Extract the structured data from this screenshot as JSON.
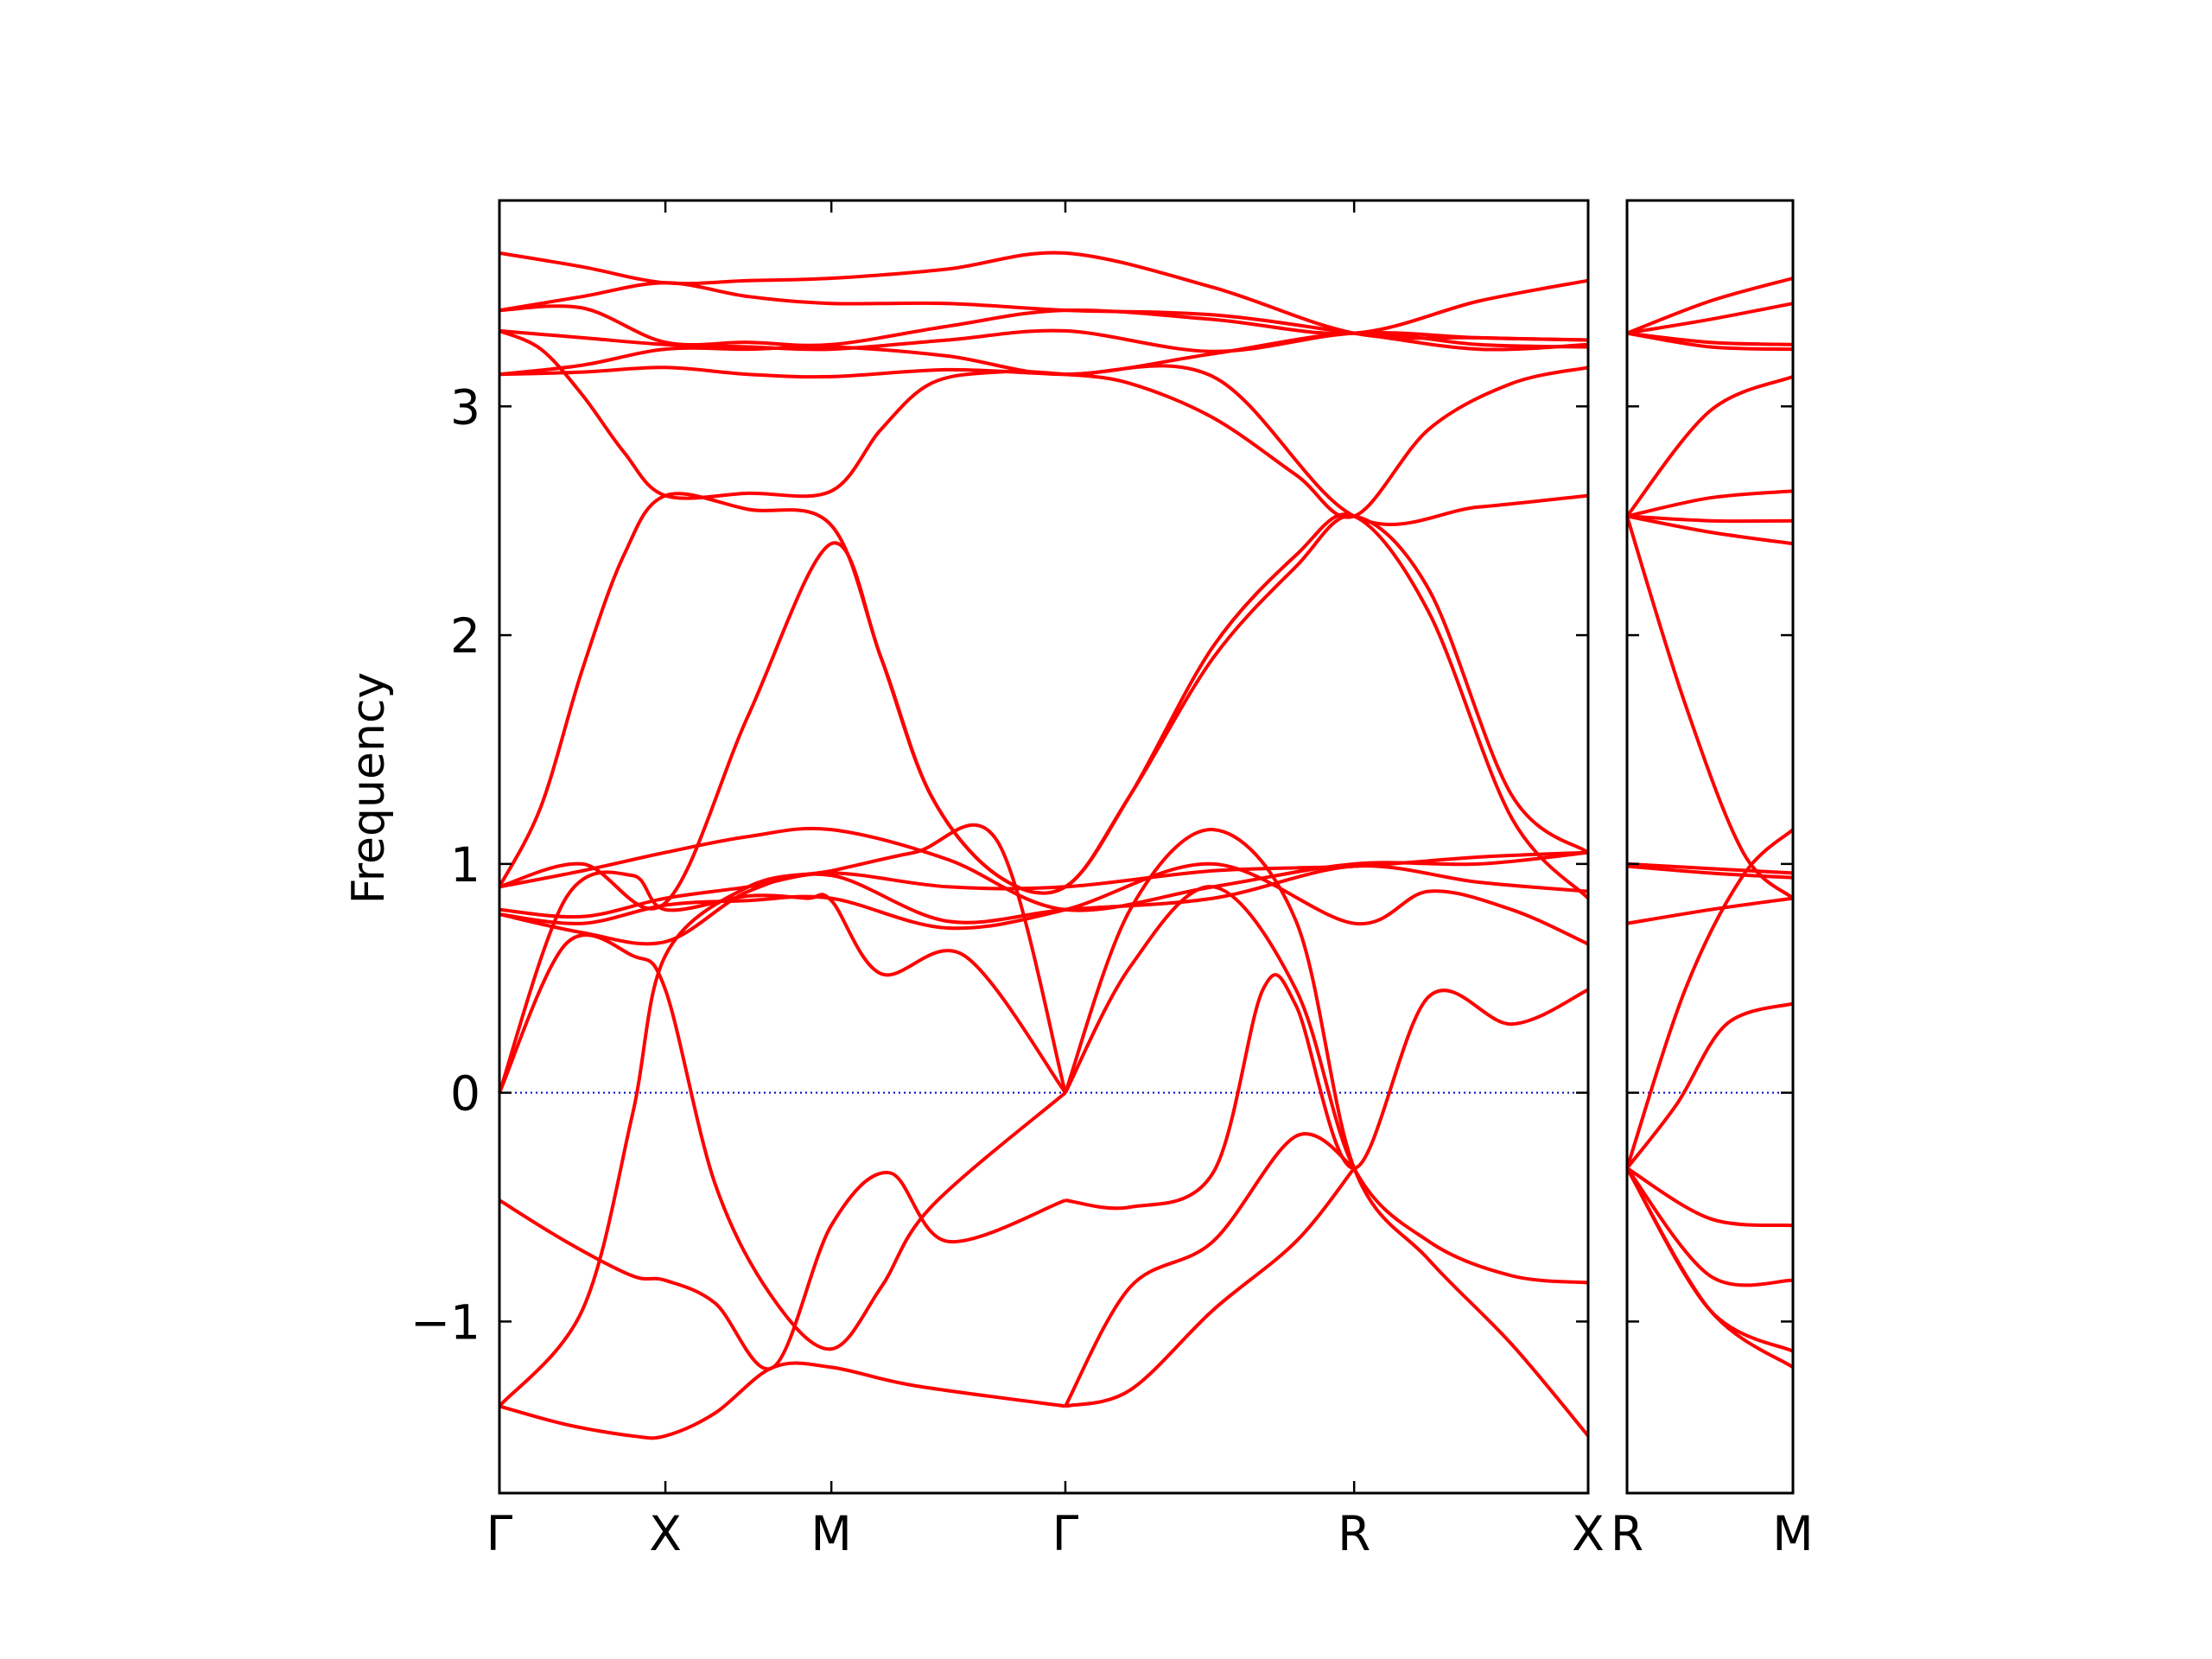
{
  "chart_data": {
    "type": "line",
    "title": "",
    "ylabel": "Frequency",
    "xlabel": "",
    "ylim": [
      -1.75,
      3.9
    ],
    "yticks": [
      -1,
      0,
      1,
      2,
      3
    ],
    "ytick_labels": [
      "−1",
      "0",
      "1",
      "2",
      "3"
    ],
    "zero_line": {
      "value": 0,
      "color": "#0000cc",
      "style": "dotted"
    },
    "band_color": "#ff0000",
    "panels": [
      {
        "name": "main",
        "xlim": [
          0,
          6.56
        ],
        "high_symmetry_points": [
          {
            "label": "Γ",
            "x": 0
          },
          {
            "label": "X",
            "x": 1
          },
          {
            "label": "M",
            "x": 2
          },
          {
            "label": "Γ",
            "x": 3.41
          },
          {
            "label": "R",
            "x": 5.15
          },
          {
            "label": "X",
            "x": 6.56
          }
        ],
        "bands": [
          {
            "x": [
              0,
              0.5,
              1,
              1.5,
              2,
              2.7,
              3.41,
              4.3,
              5.15,
              5.9,
              6.56
            ],
            "y": [
              3.67,
              3.61,
              3.54,
              3.55,
              3.56,
              3.6,
              3.67,
              3.52,
              3.32,
              3.3,
              3.29
            ]
          },
          {
            "x": [
              0,
              0.5,
              1,
              1.5,
              2,
              2.7,
              3.41,
              4.3,
              5.15,
              5.9,
              6.56
            ],
            "y": [
              3.42,
              3.48,
              3.54,
              3.48,
              3.45,
              3.45,
              3.42,
              3.4,
              3.32,
              3.25,
              3.27
            ]
          },
          {
            "x": [
              0,
              0.5,
              1,
              1.5,
              2,
              2.7,
              3.41,
              4.3,
              5.15,
              5.9,
              6.56
            ],
            "y": [
              3.42,
              3.43,
              3.28,
              3.28,
              3.27,
              3.35,
              3.42,
              3.38,
              3.32,
              3.46,
              3.55
            ]
          },
          {
            "x": [
              0,
              0.5,
              1,
              1.5,
              2,
              2.7,
              3.41,
              4.3,
              5.15,
              5.9,
              6.56
            ],
            "y": [
              3.33,
              3.3,
              3.27,
              3.26,
              3.25,
              3.29,
              3.33,
              3.24,
              3.32,
              3.3,
              3.29
            ]
          },
          {
            "x": [
              0,
              0.5,
              1,
              1.5,
              2,
              2.7,
              3.41,
              4.3,
              5.15,
              5.9,
              6.56
            ],
            "y": [
              3.14,
              3.18,
              3.25,
              3.25,
              3.26,
              3.22,
              3.14,
              3.23,
              3.32,
              3.27,
              3.26
            ]
          },
          {
            "x": [
              0,
              0.5,
              1,
              1.5,
              2,
              2.7,
              3.41,
              4.3,
              5.15,
              5.9,
              6.56
            ],
            "y": [
              3.14,
              3.15,
              3.17,
              3.14,
              3.13,
              3.16,
              3.14,
              3.13,
              2.52,
              2.56,
              2.61
            ]
          },
          {
            "x": [
              0,
              0.25,
              0.5,
              0.75,
              1,
              1.5,
              2,
              2.3,
              2.6,
              3,
              3.41,
              3.8,
              4.3,
              4.8,
              5.15,
              5.6,
              6.1,
              6.56
            ],
            "y": [
              3.33,
              3.25,
              3.05,
              2.8,
              2.61,
              2.62,
              2.63,
              2.9,
              3.1,
              3.15,
              3.14,
              3.1,
              2.95,
              2.7,
              2.52,
              2.9,
              3.1,
              3.17
            ]
          },
          {
            "x": [
              0,
              0.25,
              0.5,
              0.75,
              1,
              1.5,
              2,
              2.3,
              2.6,
              3,
              3.41,
              3.8,
              4.3,
              4.8,
              5.15,
              5.6,
              6.1,
              6.56
            ],
            "y": [
              0.9,
              1.25,
              1.85,
              2.35,
              2.61,
              2.55,
              2.48,
              1.9,
              1.3,
              0.95,
              0.9,
              1.3,
              1.9,
              2.3,
              2.52,
              2.2,
              1.3,
              1.05
            ]
          },
          {
            "x": [
              0,
              0.5,
              1,
              1.5,
              2,
              2.3,
              2.6,
              3,
              3.41,
              3.8,
              4.3,
              4.8,
              5.15,
              5.6,
              6.1,
              6.56
            ],
            "y": [
              0.9,
              1.0,
              0.83,
              1.65,
              2.4,
              1.9,
              1.3,
              0.95,
              0.9,
              1.3,
              1.95,
              2.35,
              2.52,
              2.1,
              1.2,
              0.85
            ]
          },
          {
            "x": [
              0,
              0.5,
              1,
              1.5,
              2,
              2.7,
              3.41,
              4.3,
              5.15,
              5.9,
              6.56
            ],
            "y": [
              0.9,
              0.97,
              1.05,
              1.12,
              1.15,
              1.02,
              0.8,
              0.9,
              1.0,
              1.0,
              1.05
            ]
          },
          {
            "x": [
              0,
              0.5,
              1,
              1.5,
              2,
              2.7,
              3.41,
              4.3,
              5.15,
              5.9,
              6.56
            ],
            "y": [
              0.8,
              0.77,
              0.85,
              0.9,
              0.96,
              0.9,
              0.9,
              0.97,
              0.99,
              1.03,
              1.05
            ]
          },
          {
            "x": [
              0,
              0.5,
              1,
              1.5,
              2,
              2.7,
              3.41,
              4.3,
              5.15,
              5.9,
              6.56
            ],
            "y": [
              0.78,
              0.7,
              0.66,
              0.88,
              0.95,
              0.75,
              0.8,
              0.85,
              0.99,
              0.92,
              0.88
            ]
          },
          {
            "x": [
              0,
              0.5,
              1,
              1.5,
              2,
              2.7,
              3.41,
              4.3,
              5.15,
              5.6,
              6.1,
              6.56
            ],
            "y": [
              0.78,
              0.74,
              0.82,
              0.84,
              0.85,
              0.72,
              0.8,
              1.0,
              0.74,
              0.88,
              0.8,
              0.65
            ]
          },
          {
            "x": [
              0,
              0.4,
              0.8,
              1,
              1.5,
              1.85,
              2,
              2.3,
              2.8,
              3.41
            ],
            "y": [
              0,
              0.85,
              0.95,
              0.8,
              0.86,
              0.85,
              0.84,
              0.52,
              0.6,
              0.0
            ]
          },
          {
            "x": [
              0,
              0.4,
              0.8,
              1,
              1.3,
              1.65,
              2,
              2.3,
              2.6,
              3.41
            ],
            "y": [
              0,
              0.65,
              0.6,
              0.45,
              -0.4,
              -0.9,
              -1.12,
              -0.85,
              -0.5,
              0.0
            ]
          },
          {
            "x": [
              0,
              0.4,
              0.8,
              1,
              1.3,
              1.65,
              2,
              2.35,
              2.7,
              3.41
            ],
            "y": [
              -0.47,
              -0.65,
              -0.8,
              -0.82,
              -0.92,
              -1.2,
              -0.58,
              -0.35,
              -0.65,
              -0.47
            ]
          },
          {
            "x": [
              0,
              0.4,
              0.8,
              1,
              1.3,
              1.65,
              2,
              2.5,
              3.41
            ],
            "y": [
              -1.37,
              -1.45,
              -1.5,
              -1.5,
              -1.4,
              -1.2,
              -1.2,
              -1.28,
              -1.37
            ]
          },
          {
            "x": [
              0,
              0.5,
              0.8,
              1,
              1.5,
              2,
              2.5,
              3,
              3.41
            ],
            "y": [
              -1.37,
              -0.95,
              -0.1,
              0.6,
              0.9,
              0.97,
              1.05,
              1.1,
              0.0
            ]
          },
          {
            "x": [
              3.41,
              3.8,
              4.3,
              4.8,
              5.15,
              5.6,
              6.1,
              6.56
            ],
            "y": [
              0.0,
              0.8,
              1.15,
              0.75,
              -0.33,
              -0.73,
              -1.1,
              -1.5
            ]
          },
          {
            "x": [
              3.41,
              3.8,
              4.3,
              4.8,
              5.15,
              5.6,
              6.1,
              6.56
            ],
            "y": [
              0.0,
              0.55,
              0.9,
              0.45,
              -0.33,
              -0.65,
              -0.8,
              -0.83
            ]
          },
          {
            "x": [
              3.41,
              3.8,
              4.3,
              4.6,
              4.8,
              5.15,
              5.6,
              6.1,
              6.56
            ],
            "y": [
              -0.47,
              -0.5,
              -0.35,
              0.45,
              0.38,
              -0.33,
              0.42,
              0.3,
              0.45
            ]
          },
          {
            "x": [
              3.41,
              3.8,
              4.3,
              4.8,
              5.15
            ],
            "y": [
              -1.37,
              -1.3,
              -0.95,
              -0.65,
              -0.33
            ]
          },
          {
            "x": [
              3.41,
              3.8,
              4.3,
              4.8,
              5.15
            ],
            "y": [
              -1.37,
              -0.85,
              -0.65,
              -0.19,
              -0.33
            ]
          }
        ]
      },
      {
        "name": "right",
        "xlim": [
          0,
          1
        ],
        "high_symmetry_points": [
          {
            "label": "R",
            "x": 0
          },
          {
            "label": "M",
            "x": 1
          }
        ],
        "bands": [
          {
            "x": [
              0,
              0.5,
              1
            ],
            "y": [
              3.32,
              3.46,
              3.56
            ]
          },
          {
            "x": [
              0,
              0.5,
              1
            ],
            "y": [
              3.32,
              3.38,
              3.45
            ]
          },
          {
            "x": [
              0,
              0.5,
              1
            ],
            "y": [
              3.32,
              3.28,
              3.27
            ]
          },
          {
            "x": [
              0,
              0.5,
              1
            ],
            "y": [
              3.32,
              3.26,
              3.25
            ]
          },
          {
            "x": [
              0,
              0.5,
              1
            ],
            "y": [
              2.52,
              2.98,
              3.13
            ]
          },
          {
            "x": [
              0,
              0.5,
              1
            ],
            "y": [
              2.52,
              2.6,
              2.63
            ]
          },
          {
            "x": [
              0,
              0.5,
              1
            ],
            "y": [
              2.52,
              2.5,
              2.5
            ]
          },
          {
            "x": [
              0,
              0.5,
              1
            ],
            "y": [
              2.52,
              2.45,
              2.4
            ]
          },
          {
            "x": [
              0,
              0.35,
              0.7,
              1
            ],
            "y": [
              2.52,
              1.7,
              1.05,
              0.85
            ]
          },
          {
            "x": [
              0,
              0.5,
              1
            ],
            "y": [
              1.0,
              0.98,
              0.96
            ]
          },
          {
            "x": [
              0,
              0.5,
              1
            ],
            "y": [
              0.99,
              0.96,
              0.94
            ]
          },
          {
            "x": [
              0,
              0.5,
              1
            ],
            "y": [
              0.74,
              0.8,
              0.85
            ]
          },
          {
            "x": [
              0,
              0.35,
              0.7,
              1
            ],
            "y": [
              -0.33,
              0.45,
              0.95,
              1.15
            ]
          },
          {
            "x": [
              0,
              0.3,
              0.6,
              1
            ],
            "y": [
              -0.33,
              -0.05,
              0.3,
              0.39
            ]
          },
          {
            "x": [
              0,
              0.5,
              1
            ],
            "y": [
              -0.33,
              -0.55,
              -0.58
            ]
          },
          {
            "x": [
              0,
              0.5,
              1
            ],
            "y": [
              -0.33,
              -0.8,
              -0.82
            ]
          },
          {
            "x": [
              0,
              0.5,
              1
            ],
            "y": [
              -0.33,
              -0.95,
              -1.13
            ]
          },
          {
            "x": [
              0,
              0.5,
              1
            ],
            "y": [
              -0.33,
              -0.95,
              -1.2
            ]
          }
        ]
      }
    ]
  }
}
